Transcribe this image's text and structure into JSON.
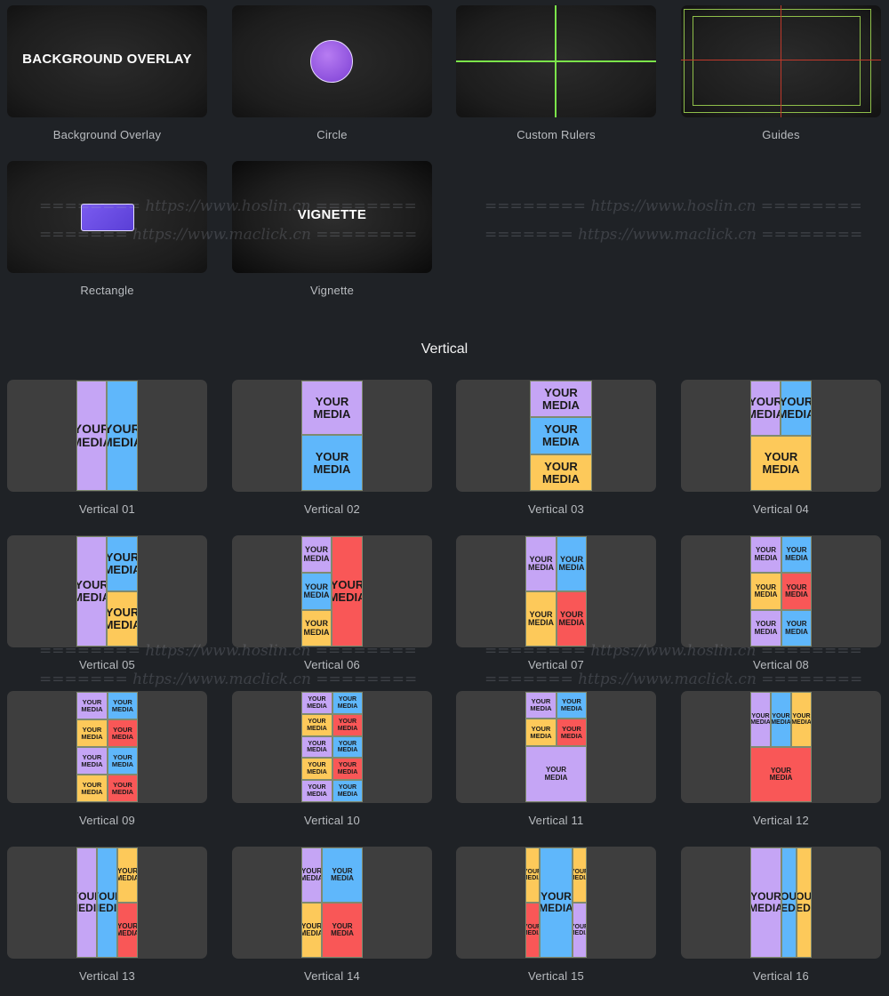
{
  "effects": [
    {
      "label": "Background Overlay",
      "preview_text": "BACKGROUND OVERLAY"
    },
    {
      "label": "Circle"
    },
    {
      "label": "Custom Rulers"
    },
    {
      "label": "Guides"
    },
    {
      "label": "Rectangle"
    },
    {
      "label": "Vignette",
      "preview_text": "VIGNETTE"
    }
  ],
  "section_title": "Vertical",
  "media_text": "YOUR MEDIA",
  "media_line1": "YOUR",
  "media_line2": "MEDIA",
  "templates": [
    {
      "label": "Vertical 01"
    },
    {
      "label": "Vertical 02"
    },
    {
      "label": "Vertical 03"
    },
    {
      "label": "Vertical 04"
    },
    {
      "label": "Vertical 05"
    },
    {
      "label": "Vertical 06"
    },
    {
      "label": "Vertical 07"
    },
    {
      "label": "Vertical 08"
    },
    {
      "label": "Vertical 09"
    },
    {
      "label": "Vertical 10"
    },
    {
      "label": "Vertical 11"
    },
    {
      "label": "Vertical 12"
    },
    {
      "label": "Vertical 13"
    },
    {
      "label": "Vertical 14"
    },
    {
      "label": "Vertical 15"
    },
    {
      "label": "Vertical 16"
    }
  ],
  "watermarks": {
    "line1": "======== https://www.hoslin.cn ========",
    "line2": "======= https://www.maclick.cn ========"
  },
  "colors": {
    "purple": "#c5a5f5",
    "blue": "#5fb7fb",
    "yellow": "#fdc95a",
    "red": "#f95757",
    "background": "#1f2226",
    "ruler_green": "#7be44a",
    "guide_red": "#c0392b"
  }
}
